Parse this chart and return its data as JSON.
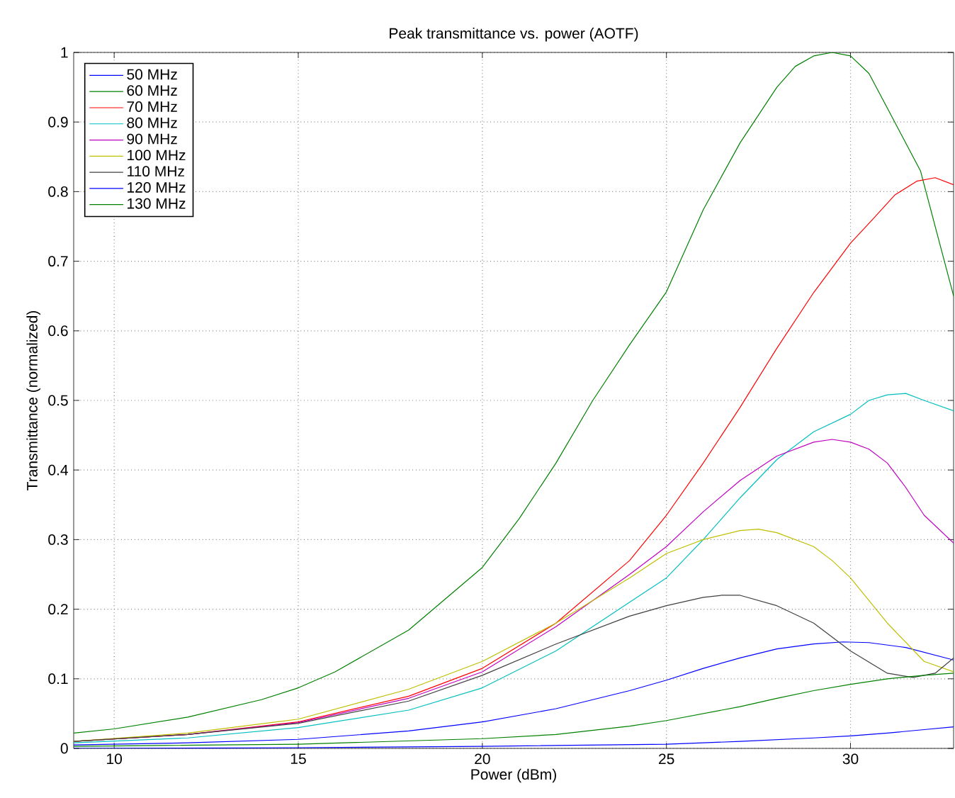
{
  "chart_data": {
    "type": "line",
    "title": "Peak transmittance vs. power (AOTF)",
    "xlabel": "Power (dBm)",
    "ylabel": "Transmittance (normalized)",
    "xlim": [
      8.9,
      32.8
    ],
    "ylim": [
      0,
      1
    ],
    "xticks": [
      10,
      15,
      20,
      25,
      30
    ],
    "yticks": [
      0,
      0.1,
      0.2,
      0.3,
      0.4,
      0.5,
      0.6,
      0.7,
      0.8,
      0.9,
      1
    ],
    "grid": true,
    "legend": "top left",
    "line_style": "solid",
    "marker": "none",
    "series": [
      {
        "name": "50 MHz",
        "color": "#0000ff",
        "x": [
          8.9,
          12,
          15,
          18,
          20,
          22,
          24,
          25,
          26,
          27,
          28,
          29,
          29.8,
          30.5,
          31.5,
          32.8
        ],
        "values": [
          0.005,
          0.008,
          0.013,
          0.025,
          0.038,
          0.057,
          0.083,
          0.098,
          0.115,
          0.13,
          0.143,
          0.15,
          0.153,
          0.152,
          0.145,
          0.127
        ]
      },
      {
        "name": "60 MHz",
        "color": "#008000",
        "x": [
          8.9,
          10,
          12,
          14,
          15,
          16,
          18,
          20,
          21,
          22,
          23,
          24,
          25,
          26,
          27,
          28,
          28.5,
          29,
          29.5,
          30,
          30.5,
          31,
          31.9,
          32.4,
          32.8
        ],
        "values": [
          0.022,
          0.028,
          0.045,
          0.07,
          0.087,
          0.11,
          0.17,
          0.26,
          0.33,
          0.41,
          0.5,
          0.58,
          0.656,
          0.774,
          0.87,
          0.95,
          0.98,
          0.995,
          1.0,
          0.995,
          0.97,
          0.92,
          0.83,
          0.73,
          0.65
        ]
      },
      {
        "name": "70 MHz",
        "color": "#ff0000",
        "x": [
          8.9,
          12,
          15,
          18,
          20,
          22,
          24,
          25,
          26,
          27,
          28,
          29,
          30,
          30.6,
          31.2,
          31.8,
          32.3,
          32.8
        ],
        "values": [
          0.01,
          0.02,
          0.038,
          0.075,
          0.115,
          0.18,
          0.27,
          0.335,
          0.41,
          0.49,
          0.575,
          0.655,
          0.726,
          0.76,
          0.795,
          0.815,
          0.82,
          0.81
        ]
      },
      {
        "name": "80 MHz",
        "color": "#00bfbf",
        "x": [
          8.9,
          12,
          15,
          18,
          20,
          22,
          24,
          25,
          26,
          27,
          28,
          29,
          30,
          30.5,
          31,
          31.5,
          32,
          32.8
        ],
        "values": [
          0.008,
          0.015,
          0.03,
          0.055,
          0.087,
          0.14,
          0.21,
          0.245,
          0.3,
          0.36,
          0.415,
          0.455,
          0.48,
          0.5,
          0.508,
          0.51,
          0.5,
          0.485
        ]
      },
      {
        "name": "90 MHz",
        "color": "#bf00bf",
        "x": [
          8.9,
          12,
          15,
          18,
          20,
          22,
          24,
          25,
          26,
          27,
          28,
          29,
          29.5,
          30,
          30.5,
          31,
          31.5,
          32,
          32.8
        ],
        "values": [
          0.01,
          0.02,
          0.037,
          0.072,
          0.11,
          0.175,
          0.25,
          0.29,
          0.34,
          0.385,
          0.42,
          0.44,
          0.444,
          0.44,
          0.43,
          0.41,
          0.375,
          0.335,
          0.295
        ]
      },
      {
        "name": "100 MHz",
        "color": "#bfbf00",
        "x": [
          8.9,
          12,
          15,
          18,
          20,
          22,
          24,
          25,
          26,
          27,
          27.5,
          28,
          29,
          29.5,
          30,
          31,
          32,
          32.8
        ],
        "values": [
          0.01,
          0.022,
          0.042,
          0.085,
          0.125,
          0.18,
          0.245,
          0.28,
          0.3,
          0.313,
          0.315,
          0.31,
          0.29,
          0.27,
          0.245,
          0.18,
          0.125,
          0.11
        ]
      },
      {
        "name": "110 MHz",
        "color": "#404040",
        "x": [
          8.9,
          12,
          15,
          18,
          20,
          22,
          24,
          25,
          26,
          26.5,
          27,
          28,
          29,
          30,
          31,
          31.7,
          32.3,
          32.8
        ],
        "values": [
          0.01,
          0.02,
          0.036,
          0.068,
          0.105,
          0.15,
          0.19,
          0.205,
          0.217,
          0.22,
          0.22,
          0.205,
          0.18,
          0.14,
          0.108,
          0.102,
          0.108,
          0.13
        ]
      },
      {
        "name": "120 MHz",
        "color": "#0000ff",
        "x": [
          8.9,
          15,
          20,
          25,
          27,
          29,
          30,
          31,
          32,
          32.8
        ],
        "values": [
          0.0,
          0.001,
          0.003,
          0.006,
          0.01,
          0.015,
          0.018,
          0.022,
          0.027,
          0.031
        ]
      },
      {
        "name": "130 MHz",
        "color": "#008000",
        "x": [
          8.9,
          15,
          20,
          22,
          24,
          25,
          26,
          27,
          28,
          29,
          30,
          31,
          32,
          32.8
        ],
        "values": [
          0.003,
          0.006,
          0.014,
          0.02,
          0.032,
          0.04,
          0.05,
          0.06,
          0.072,
          0.083,
          0.092,
          0.1,
          0.105,
          0.108
        ]
      }
    ]
  }
}
